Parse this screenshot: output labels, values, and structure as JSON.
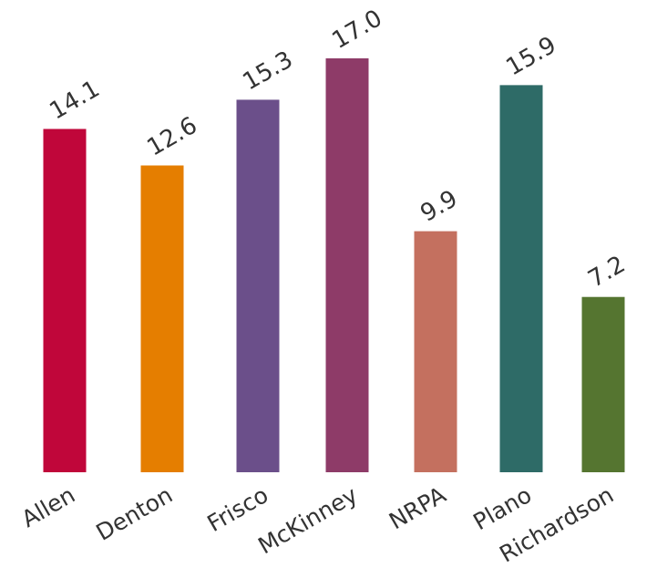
{
  "chart_data": {
    "type": "bar",
    "title": "",
    "xlabel": "",
    "ylabel": "",
    "categories": [
      "Allen",
      "Denton",
      "Frisco",
      "McKinney",
      "NRPA",
      "Plano",
      "Richardson"
    ],
    "values": [
      14.1,
      12.6,
      15.3,
      17.0,
      9.9,
      15.9,
      7.2
    ],
    "value_labels": [
      "14.1",
      "12.6",
      "15.3",
      "17.0",
      "9.9",
      "15.9",
      "7.2"
    ],
    "colors": [
      "#c0063a",
      "#e57e00",
      "#6b4f8a",
      "#8e3b68",
      "#c4705f",
      "#2e6b67",
      "#557530"
    ],
    "ylim": [
      0,
      17.0
    ],
    "grid": false,
    "legend": "none"
  }
}
